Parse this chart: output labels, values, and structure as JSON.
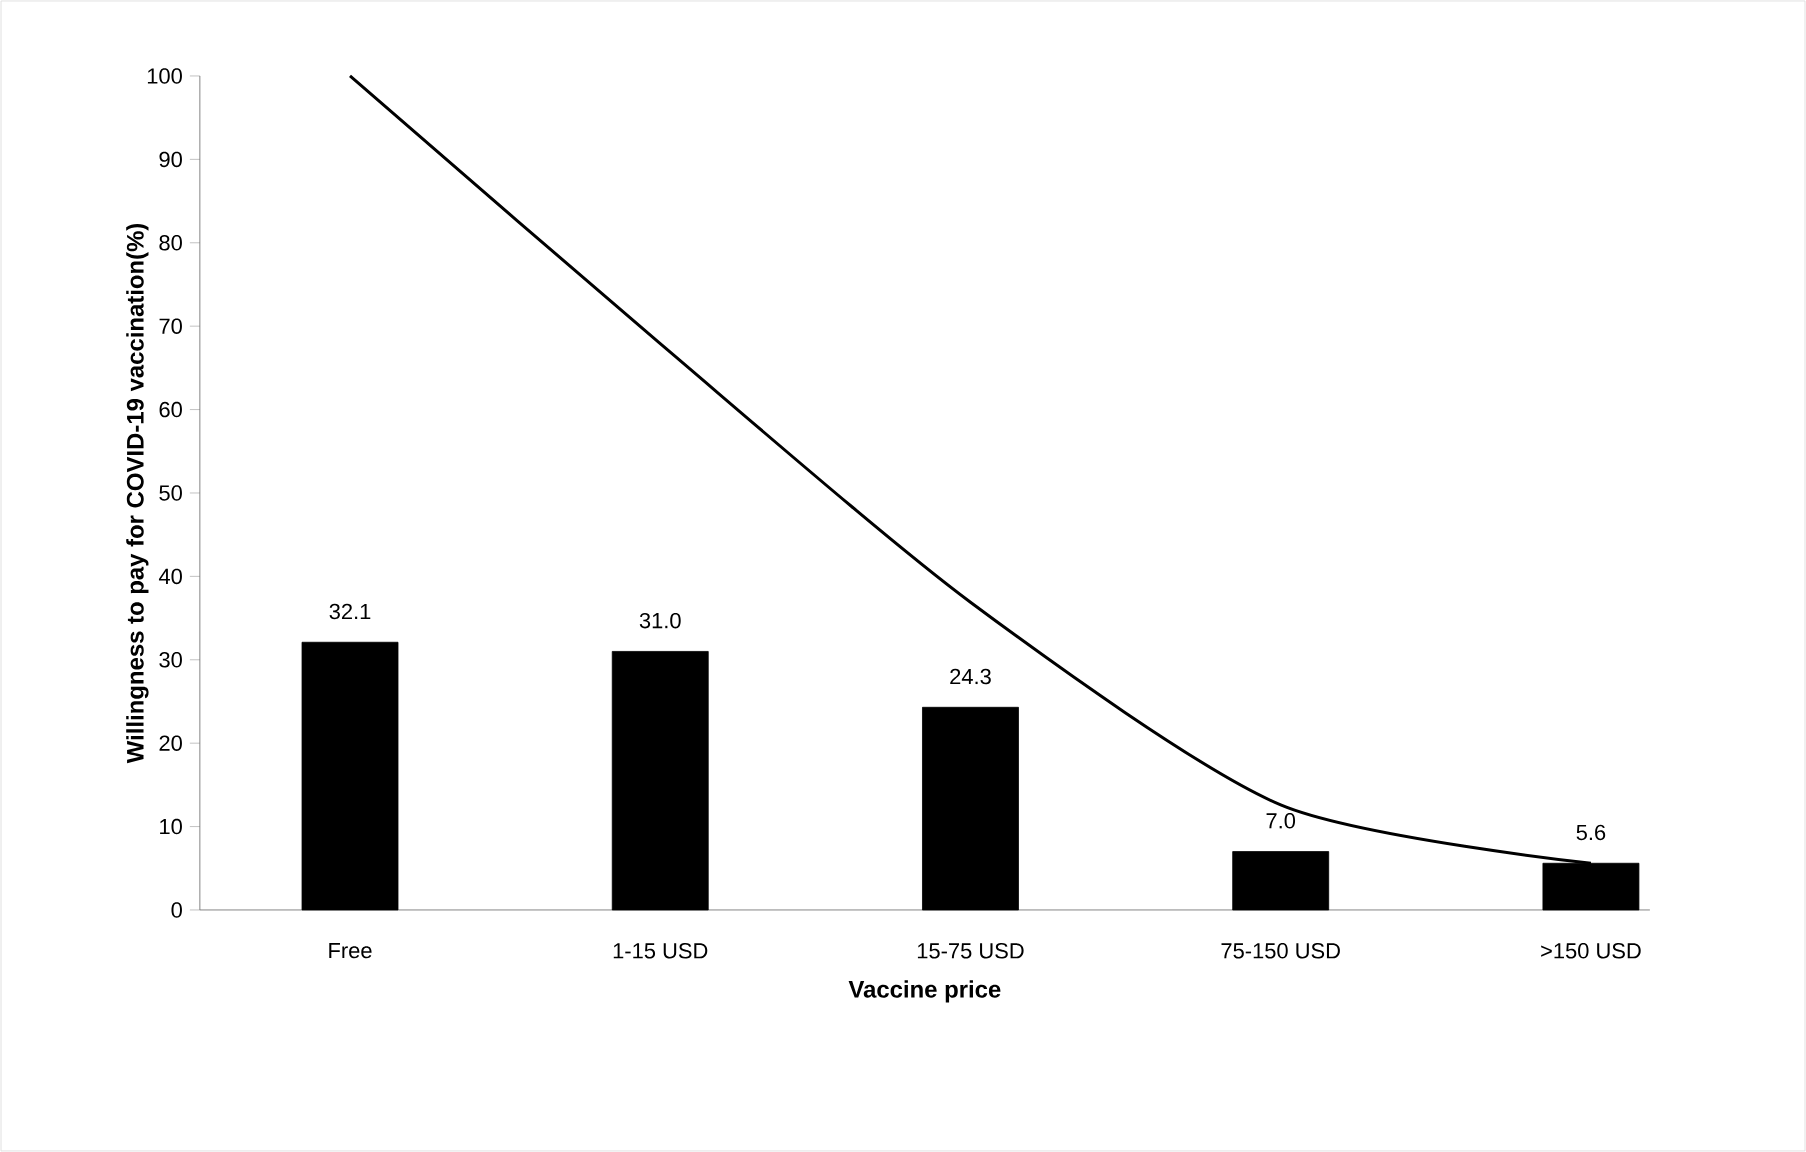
{
  "chart_data": {
    "type": "bar",
    "xlabel": "Vaccine price",
    "ylabel": "Willingness to pay for COVID-19 vaccination(%)",
    "categories": [
      "Free",
      "1-15 USD",
      "15-75 USD",
      "75-150 USD",
      ">150 USD"
    ],
    "series": [
      {
        "color": "#000000",
        "values": [
          32.1,
          31.0,
          24.3,
          7.0,
          5.6
        ],
        "value_labels": [
          "32.1",
          "31.0",
          "24.3",
          "7.0",
          "5.6"
        ]
      },
      {
        "type": "line",
        "color": "#000000",
        "values": [
          100,
          67.9,
          36.9,
          12.6,
          5.6
        ]
      }
    ],
    "ylim": [
      0,
      100
    ],
    "yticks": [
      0,
      10,
      20,
      30,
      40,
      50,
      60,
      70,
      80,
      90,
      100
    ],
    "grid": false,
    "legend": false,
    "marker": "none",
    "line_style": "solid"
  }
}
